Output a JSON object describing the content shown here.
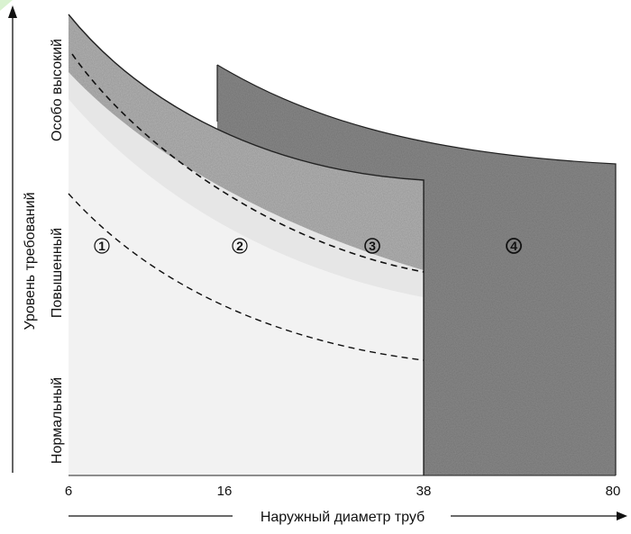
{
  "chart_data": {
    "type": "area",
    "x_axis": {
      "label": "Наружный диаметр труб",
      "ticks": [
        "6",
        "16",
        "38",
        "80"
      ]
    },
    "y_axis": {
      "label": "Уровень требований",
      "levels": [
        "Нормальный",
        "Повышенный",
        "Особо высокий"
      ]
    },
    "zones": [
      {
        "label": "1",
        "fill": "#f2f2f2",
        "x_start": "6",
        "x_end": "38"
      },
      {
        "label": "2",
        "fill": "#e6e6e6",
        "x_start": "6",
        "x_end": "38"
      },
      {
        "label": "3",
        "fill": "#b4b4b4",
        "x_start": "6",
        "x_end": "38"
      },
      {
        "label": "4",
        "fill": "#8a8a8a",
        "x_start": "16",
        "x_end": "80"
      }
    ],
    "legend": "none",
    "grid": false
  }
}
